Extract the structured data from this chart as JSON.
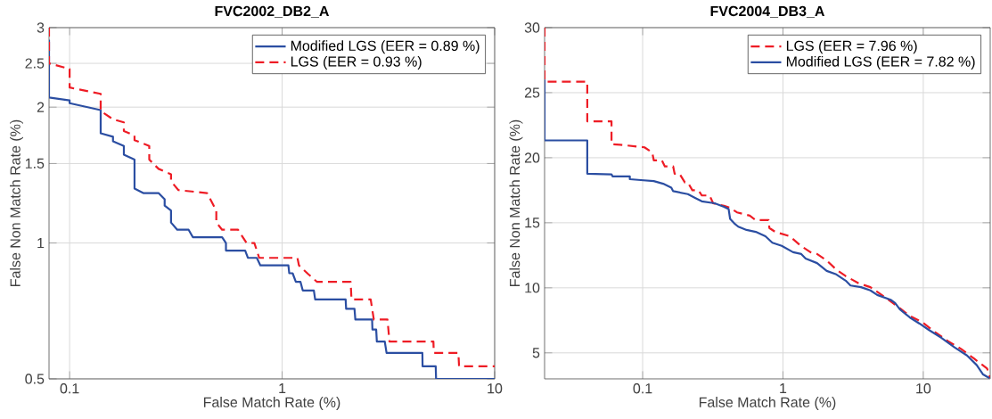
{
  "chart_data": [
    {
      "type": "line",
      "title": "FVC2002_DB2_A",
      "xlabel": "False Match Rate (%)",
      "ylabel": "False Non Match Rate (%)",
      "log": "xy",
      "xlim": [
        0.08,
        10
      ],
      "ylim": [
        0.5,
        3
      ],
      "xticks": [
        0.1,
        1,
        10
      ],
      "yticks": [
        0.5,
        1,
        1.5,
        2,
        2.5,
        3
      ],
      "grid": true,
      "legend": "top right",
      "marker": "none",
      "series": [
        {
          "name": "Modified LGS (EER = 0.89 %)",
          "color": "#2b4ea2",
          "line_style": "solid",
          "x": [
            0.08,
            0.08,
            0.1,
            0.1,
            0.14,
            0.14,
            0.16,
            0.16,
            0.18,
            0.18,
            0.202,
            0.202,
            0.222,
            0.262,
            0.28,
            0.28,
            0.3,
            0.3,
            0.321,
            0.363,
            0.38,
            0.522,
            0.544,
            0.544,
            0.67,
            0.69,
            0.76,
            0.79,
            1.07,
            1.08,
            1.12,
            1.16,
            1.22,
            1.25,
            1.41,
            1.43,
            1.99,
            2.0,
            2.19,
            2.21,
            2.65,
            2.66,
            2.77,
            2.79,
            3.04,
            3.1,
            4.57,
            4.58,
            5.28,
            5.3,
            10
          ],
          "values": [
            2.82,
            2.1,
            2.07,
            2.04,
            1.97,
            1.75,
            1.72,
            1.68,
            1.64,
            1.57,
            1.53,
            1.32,
            1.29,
            1.29,
            1.25,
            1.21,
            1.18,
            1.11,
            1.07,
            1.07,
            1.03,
            1.03,
            1.0,
            0.962,
            0.962,
            0.927,
            0.927,
            0.892,
            0.892,
            0.857,
            0.857,
            0.82,
            0.82,
            0.785,
            0.785,
            0.75,
            0.75,
            0.715,
            0.715,
            0.677,
            0.677,
            0.643,
            0.643,
            0.605,
            0.605,
            0.571,
            0.571,
            0.533,
            0.533,
            0.5,
            0.5
          ]
        },
        {
          "name": "LGS (EER = 0.93 %)",
          "color": "#ee1c25",
          "line_style": "dashed",
          "x": [
            0.08,
            0.08,
            0.1,
            0.1,
            0.14,
            0.14,
            0.16,
            0.18,
            0.18,
            0.202,
            0.202,
            0.237,
            0.237,
            0.262,
            0.3,
            0.3,
            0.325,
            0.443,
            0.49,
            0.49,
            0.522,
            0.62,
            0.68,
            0.74,
            0.78,
            1.18,
            1.2,
            1.32,
            1.46,
            2.1,
            2.12,
            2.61,
            2.7,
            3.13,
            3.2,
            5.15,
            5.17,
            6.75,
            6.8,
            10
          ],
          "values": [
            3,
            2.5,
            2.43,
            2.21,
            2.14,
            1.96,
            1.88,
            1.85,
            1.77,
            1.73,
            1.69,
            1.64,
            1.53,
            1.46,
            1.42,
            1.37,
            1.31,
            1.29,
            1.18,
            1.11,
            1.07,
            1.07,
            1.0,
            1.0,
            0.927,
            0.927,
            0.892,
            0.855,
            0.82,
            0.82,
            0.75,
            0.75,
            0.677,
            0.677,
            0.605,
            0.605,
            0.571,
            0.571,
            0.533,
            0.533
          ]
        }
      ]
    },
    {
      "type": "line",
      "title": "FVC2004_DB3_A",
      "xlabel": "False Match Rate (%)",
      "ylabel": "False Non Match Rate (%)",
      "log": "x",
      "xlim": [
        0.02,
        30
      ],
      "ylim": [
        3,
        30
      ],
      "xticks": [
        0.1,
        1,
        10
      ],
      "yticks": [
        5,
        10,
        15,
        20,
        25,
        30
      ],
      "grid": true,
      "legend": "top right",
      "marker": "none",
      "series": [
        {
          "name": "LGS (EER = 7.96 %)",
          "color": "#ee1c25",
          "line_style": "dashed",
          "x": [
            0.02,
            0.02,
            0.0403,
            0.0403,
            0.06,
            0.06,
            0.069,
            0.103,
            0.117,
            0.12,
            0.137,
            0.144,
            0.165,
            0.169,
            0.183,
            0.2,
            0.21,
            0.226,
            0.25,
            0.264,
            0.3,
            0.318,
            0.38,
            0.42,
            0.47,
            0.58,
            0.64,
            0.79,
            0.8,
            0.88,
            1.12,
            1.35,
            1.57,
            1.75,
            2.05,
            2.4,
            2.8,
            3.46,
            4.2,
            5.3,
            6.5,
            8.0,
            9.8,
            12.1,
            15,
            18.6,
            23,
            28.5,
            30
          ],
          "values": [
            30,
            25.85,
            25.85,
            22.8,
            22.8,
            21.04,
            21.0,
            20.8,
            20.4,
            19.8,
            19.8,
            19.33,
            19.33,
            18.77,
            18.77,
            18.1,
            18.1,
            17.5,
            17.5,
            17.1,
            17.1,
            16.5,
            16.3,
            16.15,
            15.8,
            15.55,
            15.2,
            15.2,
            14.6,
            14.3,
            13.96,
            13.2,
            12.74,
            12.6,
            12.1,
            11.4,
            10.9,
            10.35,
            10.05,
            9.3,
            8.6,
            7.85,
            7.37,
            6.6,
            5.9,
            5.3,
            4.56,
            3.8,
            3.05
          ]
        },
        {
          "name": "Modified LGS (EER = 7.82 %)",
          "color": "#2b4ea2",
          "line_style": "solid",
          "x": [
            0.02,
            0.02,
            0.0403,
            0.0403,
            0.06,
            0.061,
            0.081,
            0.081,
            0.097,
            0.12,
            0.14,
            0.16,
            0.165,
            0.21,
            0.238,
            0.264,
            0.326,
            0.38,
            0.41,
            0.42,
            0.45,
            0.48,
            0.55,
            0.64,
            0.75,
            0.84,
            0.98,
            1.18,
            1.35,
            1.45,
            1.75,
            2.05,
            2.4,
            2.8,
            3.03,
            3.6,
            4.2,
            4.7,
            5.85,
            6.3,
            6.8,
            8.0,
            9.4,
            11,
            13.5,
            16.7,
            20.5,
            24,
            26.7,
            29.7
          ],
          "values": [
            26.0,
            21.33,
            21.33,
            18.77,
            18.72,
            18.57,
            18.57,
            18.35,
            18.28,
            18.2,
            18.0,
            17.7,
            17.43,
            17.2,
            16.9,
            16.65,
            16.5,
            16.23,
            16.05,
            15.3,
            14.95,
            14.7,
            14.45,
            14.3,
            13.96,
            13.47,
            13.23,
            12.74,
            12.6,
            12.25,
            11.9,
            11.3,
            11.03,
            10.55,
            10.18,
            10.05,
            9.8,
            9.45,
            9.08,
            8.83,
            8.35,
            7.73,
            7.25,
            6.75,
            6.15,
            5.42,
            4.8,
            4.07,
            3.34,
            3.05
          ]
        }
      ]
    }
  ]
}
